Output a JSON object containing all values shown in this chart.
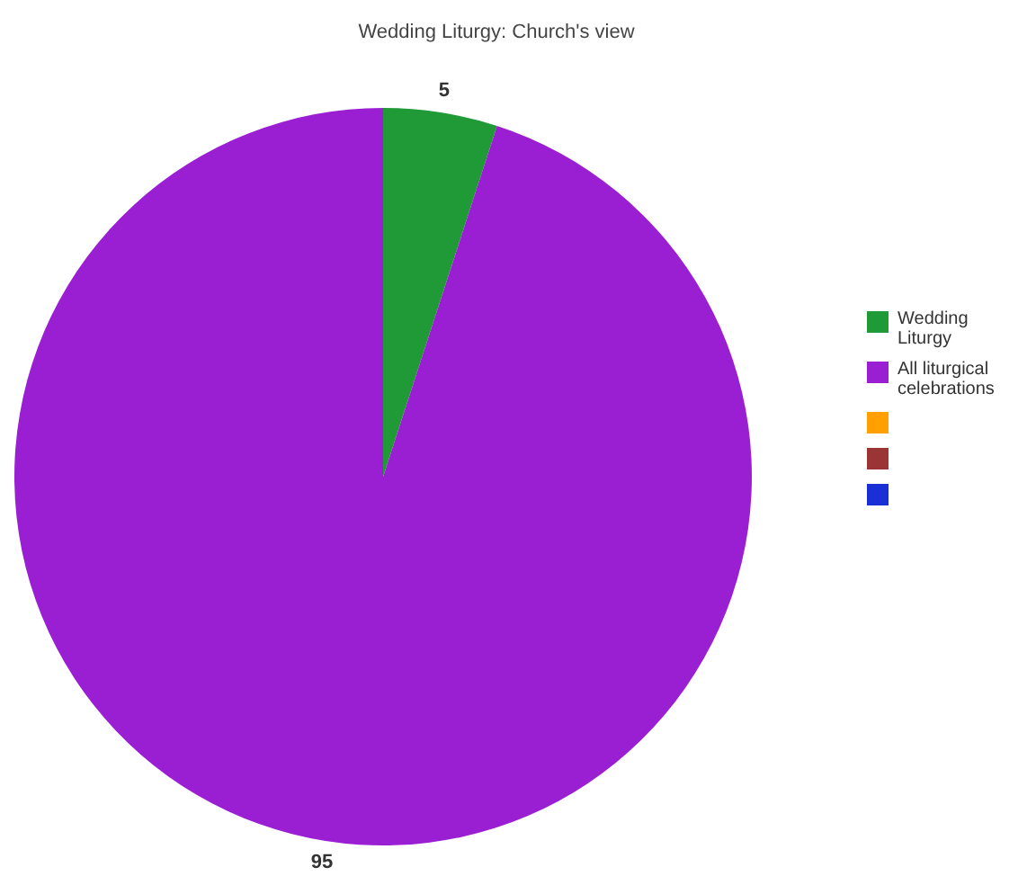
{
  "chart_data": {
    "type": "pie",
    "title": "Wedding Liturgy: Church's view",
    "categories": [
      "Wedding Liturgy",
      "All liturgical celebrations",
      null,
      null,
      null
    ],
    "values": [
      5,
      95,
      0,
      0,
      0
    ],
    "colors": [
      "#1f9a36",
      "#9a1fd2",
      "#ffa000",
      "#9b3434",
      "#1b2fd6"
    ],
    "data_labels": true,
    "legend": "right"
  }
}
